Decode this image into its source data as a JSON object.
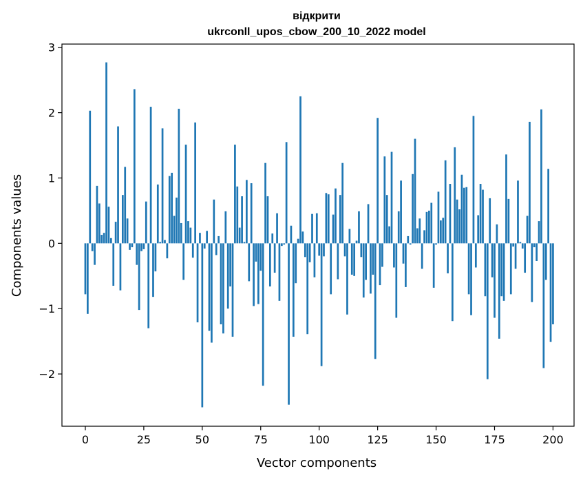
{
  "chart_data": {
    "type": "bar",
    "title_line1": "відкрити",
    "title_line2": "ukrconll_upos_cbow_200_10_2022 model",
    "xlabel": "Vector components",
    "ylabel": "Components values",
    "xlim": [
      -10,
      209
    ],
    "ylim": [
      -2.8,
      3.05
    ],
    "xticks": [
      0,
      25,
      50,
      75,
      100,
      125,
      150,
      175,
      200
    ],
    "xtick_labels": [
      "0",
      "25",
      "50",
      "75",
      "100",
      "125",
      "150",
      "175",
      "200"
    ],
    "yticks": [
      -2,
      -1,
      0,
      1,
      2,
      3
    ],
    "ytick_labels": [
      "−2",
      "−1",
      "0",
      "1",
      "2",
      "3"
    ],
    "grid": false,
    "bar_color": "#1f77b4",
    "values": [
      -0.78,
      -1.08,
      2.03,
      -0.12,
      -0.33,
      0.88,
      0.61,
      0.13,
      0.16,
      2.77,
      0.56,
      0.08,
      -0.65,
      0.33,
      1.79,
      -0.72,
      0.74,
      1.17,
      0.38,
      -0.1,
      -0.06,
      2.36,
      -0.33,
      -1.02,
      -0.12,
      -0.09,
      0.64,
      -1.3,
      2.09,
      -0.82,
      -0.43,
      0.9,
      0.02,
      1.76,
      0.05,
      -0.23,
      1.03,
      1.08,
      0.42,
      0.7,
      2.06,
      0.31,
      -0.56,
      1.51,
      0.34,
      0.24,
      -0.22,
      1.85,
      -1.21,
      0.16,
      -2.51,
      -0.08,
      0.19,
      -1.34,
      -1.52,
      0.67,
      -0.18,
      0.11,
      -1.24,
      -1.38,
      0.49,
      -1.0,
      -0.66,
      -1.43,
      1.51,
      0.87,
      0.24,
      0.72,
      0.02,
      0.97,
      -0.58,
      0.92,
      -0.96,
      -0.28,
      -0.93,
      -0.42,
      -2.18,
      1.23,
      0.72,
      -0.66,
      0.15,
      -0.45,
      0.46,
      -0.88,
      -0.04,
      -0.02,
      1.55,
      -2.47,
      0.27,
      -1.43,
      -0.61,
      0.07,
      2.25,
      0.18,
      -0.21,
      -1.39,
      -0.29,
      0.45,
      -0.52,
      0.46,
      -0.19,
      -1.88,
      -0.2,
      0.77,
      0.75,
      -0.78,
      0.44,
      0.84,
      -0.55,
      0.74,
      1.23,
      -0.2,
      -1.09,
      0.22,
      -0.48,
      -0.5,
      0.04,
      0.49,
      -0.21,
      -0.83,
      -0.56,
      0.6,
      -0.77,
      -0.48,
      -1.77,
      1.92,
      -0.64,
      -0.36,
      1.33,
      0.74,
      0.26,
      1.4,
      -0.37,
      -1.14,
      0.49,
      0.96,
      -0.31,
      -0.67,
      0.11,
      -0.02,
      1.06,
      1.6,
      0.23,
      0.38,
      -0.39,
      0.2,
      0.48,
      0.5,
      0.62,
      -0.68,
      -0.02,
      0.79,
      0.35,
      0.39,
      1.27,
      -0.46,
      0.91,
      -1.19,
      1.47,
      0.67,
      0.52,
      1.05,
      0.85,
      0.86,
      -0.78,
      -1.1,
      1.95,
      -0.37,
      0.43,
      0.91,
      0.82,
      -0.81,
      -2.08,
      0.69,
      -0.52,
      -1.14,
      0.29,
      -1.46,
      -0.81,
      -0.88,
      1.36,
      0.68,
      -0.78,
      -0.05,
      -0.39,
      0.96,
      0.02,
      -0.08,
      -0.45,
      0.42,
      1.86,
      -0.9,
      -0.06,
      -0.27,
      0.34,
      2.05,
      -1.91,
      -0.56,
      1.14,
      -1.51,
      -1.24
    ]
  }
}
